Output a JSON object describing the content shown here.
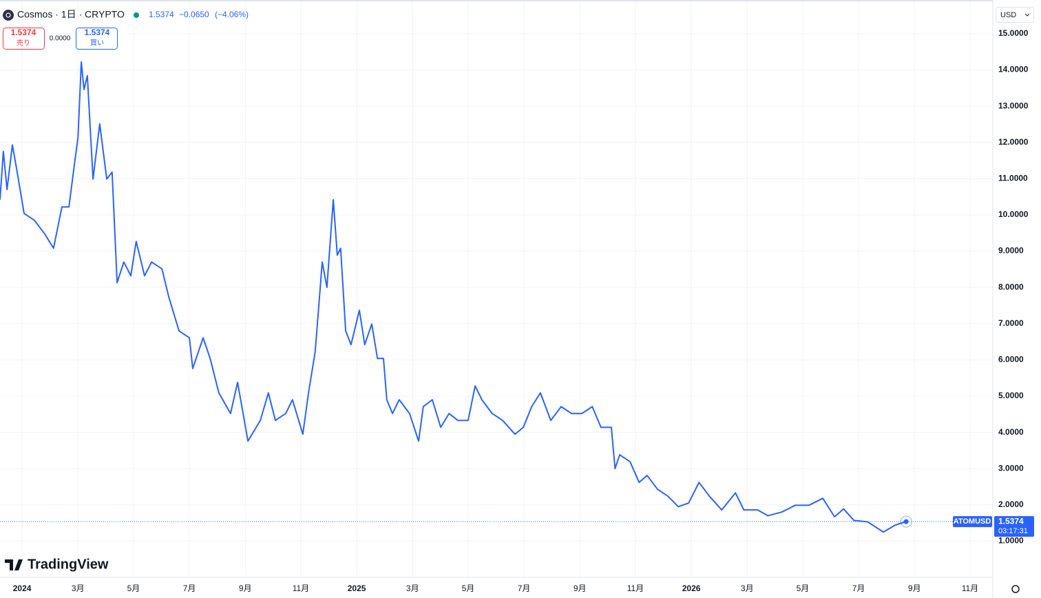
{
  "header": {
    "symbol": "Cosmos · 1日 · CRYPTO",
    "price": "1.5374",
    "change": "−0.0650",
    "change_pct": "(−4.06%)",
    "sell_price": "1.5374",
    "sell_label": "売り",
    "spread": "0.0000",
    "buy_price": "1.5374",
    "buy_label": "買い",
    "currency": "USD",
    "logo": "TradingView"
  },
  "chart_data": {
    "type": "line",
    "x": [
      2023.934,
      2023.944,
      2023.955,
      2023.971,
      2023.985,
      2024.006,
      2024.037,
      2024.068,
      2024.094,
      2024.119,
      2024.14,
      2024.156,
      2024.167,
      2024.177,
      2024.185,
      2024.195,
      2024.212,
      2024.232,
      2024.253,
      2024.269,
      2024.284,
      2024.304,
      2024.325,
      2024.341,
      2024.366,
      2024.387,
      2024.418,
      2024.438,
      2024.469,
      2024.5,
      2024.51,
      2024.541,
      2024.562,
      2024.588,
      2024.623,
      2024.644,
      2024.675,
      2024.712,
      2024.736,
      2024.757,
      2024.788,
      2024.808,
      2024.839,
      2024.856,
      2024.876,
      2024.897,
      2024.911,
      2024.93,
      2024.942,
      2024.952,
      2024.967,
      2024.983,
      2025.008,
      2025.024,
      2025.045,
      2025.062,
      2025.08,
      2025.09,
      2025.107,
      2025.127,
      2025.158,
      2025.185,
      2025.199,
      2025.226,
      2025.251,
      2025.276,
      2025.302,
      2025.333,
      2025.354,
      2025.374,
      2025.405,
      2025.436,
      2025.473,
      2025.498,
      2025.523,
      2025.549,
      2025.58,
      2025.611,
      2025.642,
      2025.673,
      2025.704,
      2025.73,
      2025.761,
      2025.772,
      2025.786,
      2025.817,
      2025.844,
      2025.868,
      2025.899,
      2025.93,
      2025.961,
      2025.992,
      2026.023,
      2026.054,
      2026.091,
      2026.132,
      2026.157,
      2026.198,
      2026.229,
      2026.27,
      2026.311,
      2026.352,
      2026.393,
      2026.428,
      2026.455,
      2026.486,
      2026.527,
      2026.574,
      2026.609,
      2026.642
    ],
    "series": [
      {
        "name": "ATOMUSD",
        "color": "#2962ff",
        "values": [
          10.42,
          11.75,
          10.7,
          11.93,
          11.2,
          10.04,
          9.85,
          9.47,
          9.08,
          10.22,
          10.22,
          11.37,
          12.13,
          14.22,
          13.46,
          13.84,
          10.99,
          12.51,
          10.99,
          11.18,
          8.13,
          8.7,
          8.32,
          9.27,
          8.32,
          8.7,
          8.51,
          7.75,
          6.8,
          6.61,
          5.76,
          6.61,
          6.04,
          5.09,
          4.52,
          5.38,
          3.76,
          4.33,
          5.09,
          4.33,
          4.52,
          4.9,
          3.95,
          5.09,
          6.23,
          8.7,
          8.0,
          10.42,
          8.89,
          9.08,
          6.8,
          6.42,
          7.37,
          6.42,
          6.99,
          6.04,
          6.04,
          4.9,
          4.52,
          4.9,
          4.52,
          3.76,
          4.71,
          4.9,
          4.14,
          4.52,
          4.33,
          4.33,
          5.28,
          4.9,
          4.52,
          4.33,
          3.95,
          4.14,
          4.71,
          5.09,
          4.33,
          4.71,
          4.52,
          4.52,
          4.71,
          4.14,
          4.14,
          3.0,
          3.38,
          3.19,
          2.62,
          2.81,
          2.43,
          2.24,
          1.95,
          2.05,
          2.62,
          2.24,
          1.86,
          2.33,
          1.86,
          1.86,
          1.7,
          1.8,
          1.99,
          1.99,
          2.18,
          1.67,
          1.89,
          1.57,
          1.53,
          1.25,
          1.44,
          1.5374
        ]
      }
    ],
    "last_price": 1.5374,
    "countdown": "03:17:31",
    "xlim": [
      2023.934,
      2026.901
    ],
    "ylim": [
      0,
      15.93
    ],
    "xticks": [
      2024,
      {
        "value": 2024.167,
        "label": "3月"
      },
      {
        "value": 2024.333,
        "label": "5月"
      },
      {
        "value": 2024.5,
        "label": "7月"
      },
      {
        "value": 2024.667,
        "label": "9月"
      },
      {
        "value": 2024.833,
        "label": "11月"
      },
      2025,
      {
        "value": 2025.167,
        "label": "3月"
      },
      {
        "value": 2025.333,
        "label": "5月"
      },
      {
        "value": 2025.5,
        "label": "7月"
      },
      {
        "value": 2025.667,
        "label": "9月"
      },
      {
        "value": 2025.833,
        "label": "11月"
      },
      2026,
      {
        "value": 2026.167,
        "label": "3月"
      },
      {
        "value": 2026.333,
        "label": "5月"
      },
      {
        "value": 2026.5,
        "label": "7月"
      },
      {
        "value": 2026.667,
        "label": "9月"
      },
      {
        "value": 2026.833,
        "label": "11月"
      }
    ],
    "yticks": [
      {
        "value": 1,
        "label": "1.0000"
      },
      {
        "value": 2,
        "label": "2.0000"
      },
      {
        "value": 3,
        "label": "3.0000"
      },
      {
        "value": 4,
        "label": "4.0000"
      },
      {
        "value": 5,
        "label": "5.0000"
      },
      {
        "value": 6,
        "label": "6.0000"
      },
      {
        "value": 7,
        "label": "7.0000"
      },
      {
        "value": 8,
        "label": "8.0000"
      },
      {
        "value": 9,
        "label": "9.0000"
      },
      {
        "value": 10,
        "label": "10.0000"
      },
      {
        "value": 11,
        "label": "11.0000"
      },
      {
        "value": 12,
        "label": "12.0000"
      },
      {
        "value": 13,
        "label": "13.0000"
      },
      {
        "value": 14,
        "label": "14.0000"
      },
      {
        "value": 15,
        "label": "15.0000"
      }
    ],
    "grid": true
  }
}
